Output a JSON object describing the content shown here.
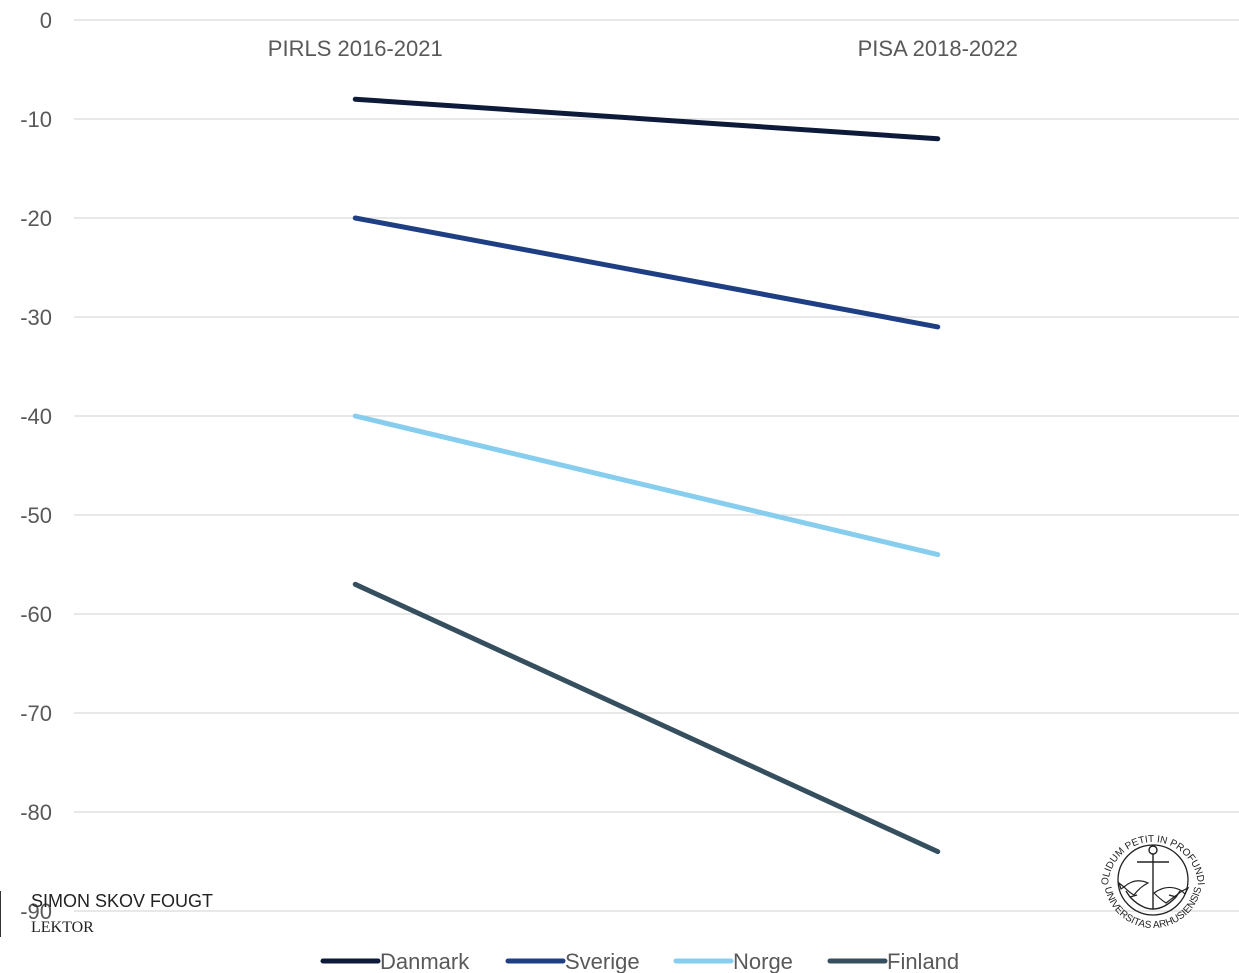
{
  "chart_data": {
    "type": "line",
    "categories": [
      "PIRLS 2016-2021",
      "PISA 2018-2022"
    ],
    "category_axis_position": "top",
    "ylim": [
      -90,
      0
    ],
    "ytick_step": 10,
    "yticks": [
      "0",
      "-10",
      "-20",
      "-30",
      "-40",
      "-50",
      "-60",
      "-70",
      "-80",
      "-90"
    ],
    "grid": true,
    "legend_position": "bottom",
    "series": [
      {
        "name": "Danmark",
        "values": [
          -8,
          -12
        ],
        "color": "#0e1a3a"
      },
      {
        "name": "Sverige",
        "values": [
          -20,
          -31
        ],
        "color": "#1f3f84"
      },
      {
        "name": "Norge",
        "values": [
          -40,
          -54
        ],
        "color": "#87cdee"
      },
      {
        "name": "Finland",
        "values": [
          -57,
          -84
        ],
        "color": "#364f5e"
      }
    ],
    "title": "",
    "xlabel": "",
    "ylabel": ""
  },
  "author": {
    "name": "SIMON SKOV FOUGT",
    "title": "LEKTOR"
  },
  "seal": {
    "icon": "university-seal-icon",
    "top_text": "SOLIDUM PETIT IN PROFUNDIS",
    "bottom_text": "UNIVERSITAS ARHUSIENSIS"
  }
}
